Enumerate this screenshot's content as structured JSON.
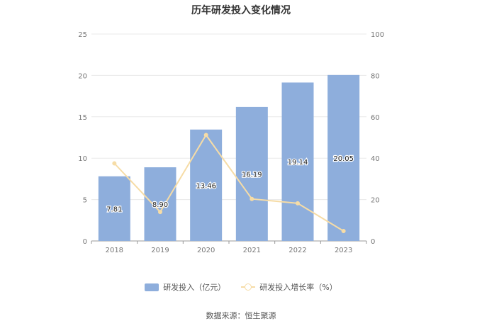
{
  "chart_data": {
    "type": "bar",
    "title": "历年研发投入变化情况",
    "categories": [
      "2018",
      "2019",
      "2020",
      "2021",
      "2022",
      "2023"
    ],
    "series": [
      {
        "name": "研发投入（亿元）",
        "type": "bar",
        "axis": "left",
        "color": "#8eaedc",
        "values": [
          7.81,
          8.9,
          13.46,
          16.19,
          19.14,
          20.05
        ],
        "labels": [
          "7.81",
          "8.90",
          "13.46",
          "16.19",
          "19.14",
          "20.05"
        ]
      },
      {
        "name": "研发投入增长率（%）",
        "type": "line",
        "axis": "right",
        "color": "#f6dca6",
        "values": [
          37.5,
          14.0,
          51.2,
          20.3,
          18.2,
          4.8
        ]
      }
    ],
    "y_left": {
      "ylim": [
        0,
        25
      ],
      "ticks": [
        "0",
        "5",
        "10",
        "15",
        "20",
        "25"
      ]
    },
    "y_right": {
      "ylim": [
        0,
        100
      ],
      "ticks": [
        "0",
        "20",
        "40",
        "60",
        "80",
        "100"
      ]
    },
    "grid": true,
    "legend_position": "bottom-center"
  },
  "legend": {
    "bar_label": "研发投入（亿元）",
    "line_label": "研发投入增长率（%）"
  },
  "source": "数据来源：恒生聚源"
}
